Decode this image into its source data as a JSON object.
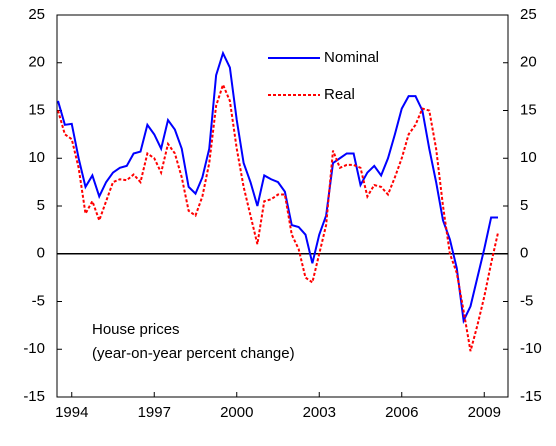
{
  "chart_data": {
    "type": "line",
    "annotation": [
      "House prices",
      "(year-on-year percent change)"
    ],
    "categories": [
      null,
      null,
      "1994",
      null,
      null,
      null,
      null,
      null,
      null,
      null,
      null,
      null,
      null,
      null,
      "1997",
      null,
      null,
      null,
      null,
      null,
      null,
      null,
      null,
      null,
      null,
      null,
      "2000",
      null,
      null,
      null,
      null,
      null,
      null,
      null,
      null,
      null,
      null,
      null,
      "2003",
      null,
      null,
      null,
      null,
      null,
      null,
      null,
      null,
      null,
      null,
      null,
      "2006",
      null,
      null,
      null,
      null,
      null,
      null,
      null,
      null,
      null,
      null,
      null,
      "2009",
      null,
      null
    ],
    "series": [
      {
        "name": "Nominal",
        "color": "#0000ff",
        "dash": false,
        "values": [
          16,
          13.5,
          13.6,
          10,
          7,
          8.2,
          6,
          7.5,
          8.5,
          9,
          9.2,
          10.5,
          10.7,
          13.5,
          12.5,
          11,
          14,
          13,
          11,
          7,
          6.3,
          8,
          11,
          18.7,
          21,
          19.5,
          14,
          9.5,
          7.5,
          5,
          8.2,
          7.8,
          7.5,
          6.5,
          3,
          2.8,
          2,
          -1,
          2,
          4,
          9.5,
          10,
          10.5,
          10.5,
          7.2,
          8.5,
          9.2,
          8.2,
          10,
          12.5,
          15.2,
          16.5,
          16.5,
          15,
          11,
          7.5,
          3.5,
          1.5,
          -1.5,
          -7,
          -5.5,
          -2.5,
          0.5,
          3.8,
          3.8
        ]
      },
      {
        "name": "Real",
        "color": "#ff0000",
        "dash": true,
        "values": [
          15,
          12.5,
          12,
          9,
          4.2,
          5.5,
          3.5,
          5.5,
          7.5,
          7.8,
          7.7,
          8.3,
          7.5,
          10.5,
          10,
          8.5,
          11.5,
          10.5,
          8,
          4.5,
          4,
          6,
          9.5,
          15.5,
          17.7,
          16,
          11,
          7,
          4,
          1,
          5.5,
          5.7,
          6.2,
          6.2,
          2,
          0.5,
          -2.5,
          -3,
          0,
          3,
          10.8,
          9,
          9.3,
          9.3,
          9,
          6,
          7.2,
          7,
          6.2,
          8,
          10,
          12.5,
          13.5,
          15.2,
          15,
          11,
          5,
          0,
          -2,
          -6,
          -10.2,
          -7.5,
          -4.5,
          -1,
          2.2
        ]
      }
    ],
    "ylim": [
      -15,
      25
    ],
    "yticks": [
      -15,
      -10,
      -5,
      0,
      5,
      10,
      15,
      20,
      25
    ],
    "y2lim": [
      -15,
      25
    ],
    "y2ticks": [
      -15,
      -10,
      -5,
      0,
      5,
      10,
      15,
      20,
      25
    ]
  }
}
